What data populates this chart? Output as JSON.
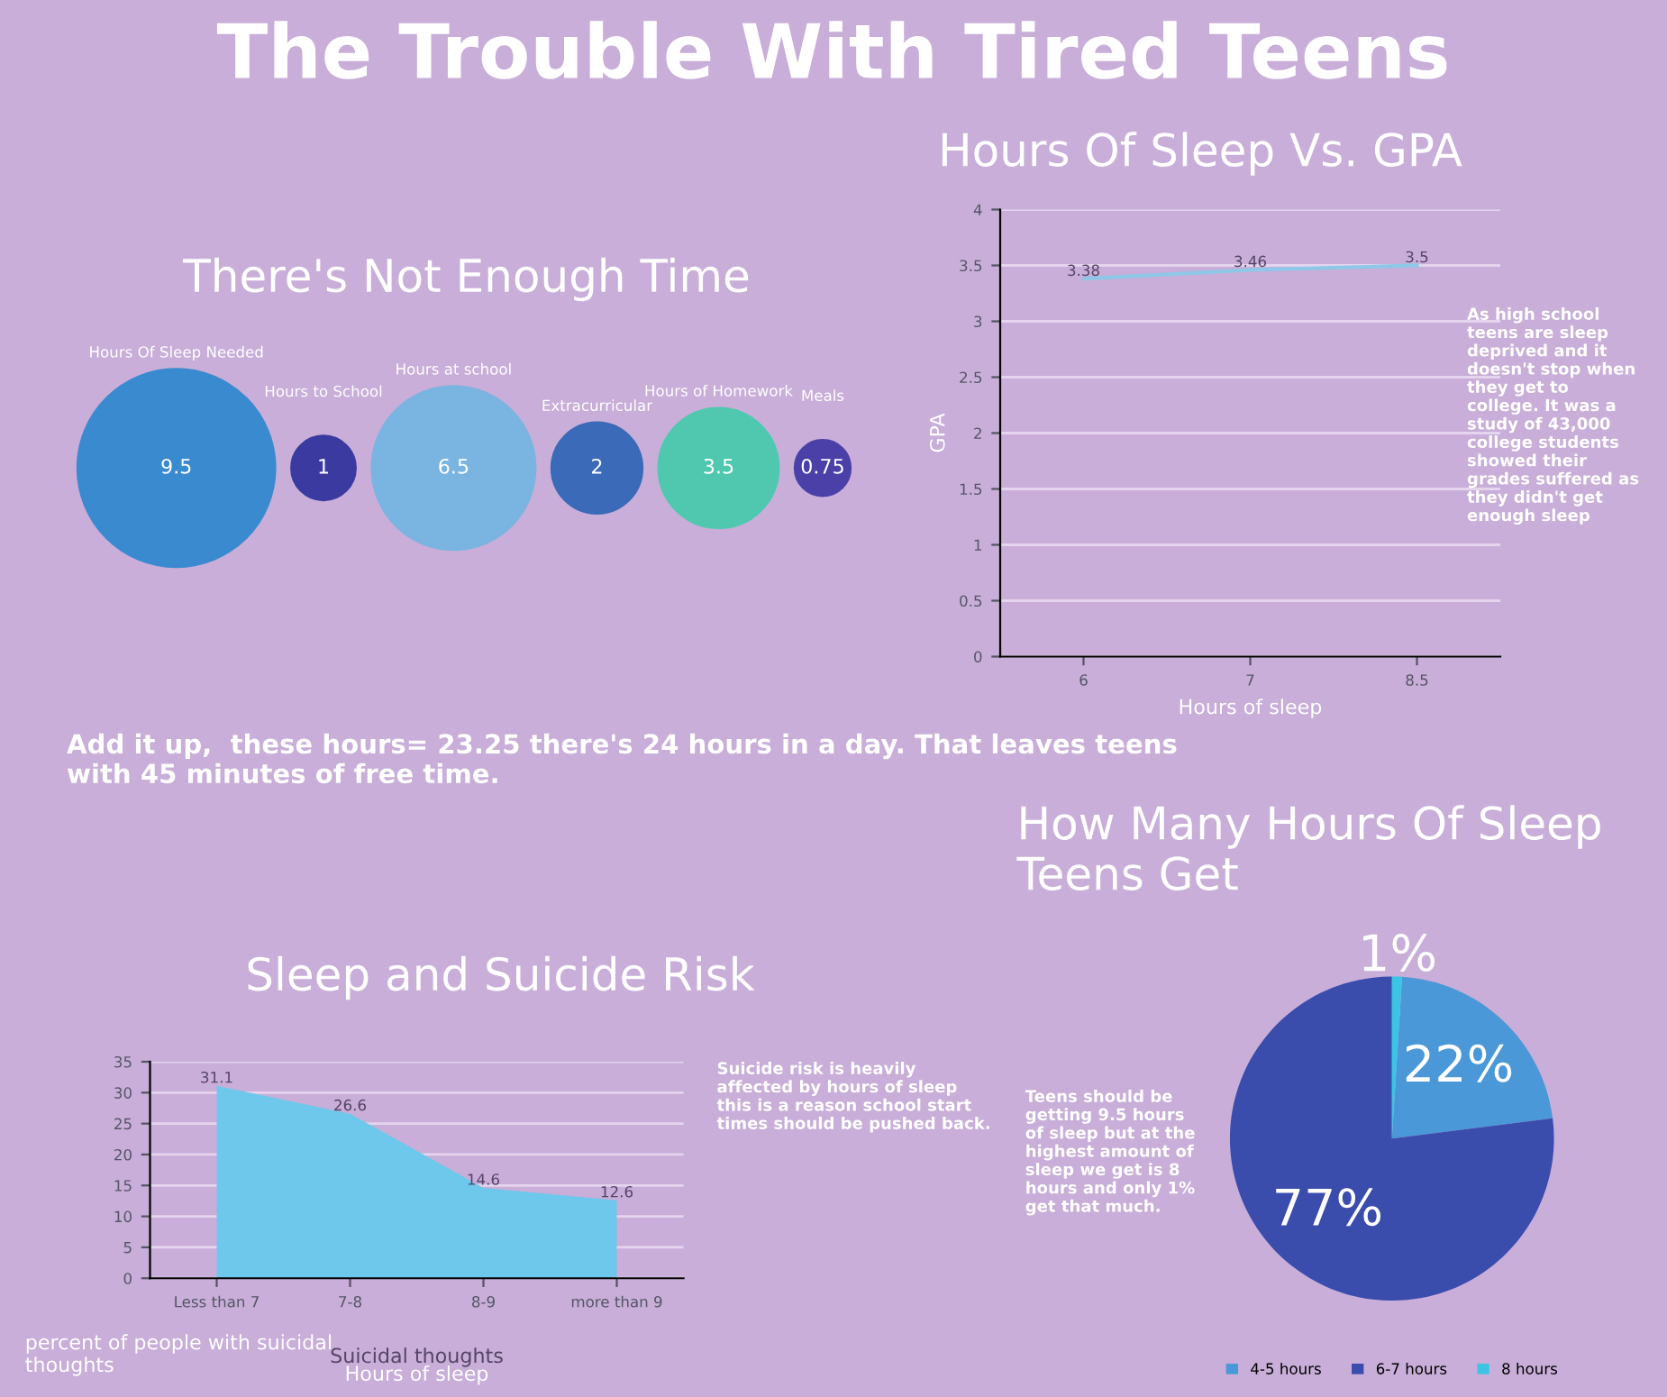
{
  "chart_data": [
    {
      "type": "other",
      "title": "The Trouble With Tired Teens"
    },
    {
      "type": "other",
      "title": "There's Not Enough Time",
      "categories": [
        "Hours Of Sleep Needed",
        "Hours to School",
        "Hours at school",
        "Extracurricular",
        "Hours of Homework",
        "Meals"
      ],
      "values": [
        9.5,
        1,
        6.5,
        2,
        3.5,
        0.75
      ],
      "colors": [
        "#3a8ad0",
        "#3a3aa0",
        "#7ab4e0",
        "#3a6ab8",
        "#50c8b0",
        "#4a40a8"
      ],
      "data_labels": true,
      "annotations": [
        "Add it up,  these hours= 23.25 there's 24 hours in a day. That leaves teens with 45 minutes of free time."
      ]
    },
    {
      "type": "line",
      "title": "Hours Of Sleep Vs. GPA",
      "xlabel": "Hours of sleep",
      "ylabel": "GPA",
      "categories": [
        "6",
        "7",
        "8.5"
      ],
      "series": [
        {
          "color": "#8ec8e8",
          "values": [
            3.38,
            3.46,
            3.5
          ]
        }
      ],
      "ylim": [
        0,
        4
      ],
      "yticks": [
        0,
        0.5,
        1,
        1.5,
        2,
        2.5,
        3,
        3.5,
        4
      ],
      "grid": "y",
      "data_labels": true,
      "marker": "none",
      "annotations": [
        "As high school teens are sleep deprived and it doesn't stop when they get to college. It was a study of 43,000 college students showed their grades suffered as they didn't get enough sleep"
      ]
    },
    {
      "type": "area",
      "title": "Sleep and Suicide Risk",
      "xlabel": "Hours of sleep",
      "ylabel": "percent of people with suicidal thoughts",
      "categories": [
        "Less than 7",
        "7-8",
        "8-9",
        "more than 9"
      ],
      "series": [
        {
          "name": "Suicidal thoughts",
          "color": "#6ec8ec",
          "values": [
            31.1,
            26.6,
            14.6,
            12.6
          ]
        }
      ],
      "ylim": [
        0,
        35
      ],
      "yticks": [
        0,
        5,
        10,
        15,
        20,
        25,
        30,
        35
      ],
      "grid": "y",
      "data_labels": true,
      "annotations": [
        "Suicide risk is heavily affected by hours of sleep this is a reason school start times should be pushed back."
      ]
    },
    {
      "type": "pie",
      "title": "How Many Hours Of Sleep Teens Get",
      "categories": [
        "4-5 hours",
        "6-7 hours",
        "8 hours"
      ],
      "values": [
        22,
        77,
        1
      ],
      "colors": [
        "#4a98d8",
        "#3a4cac",
        "#3cc4e4"
      ],
      "legend": "bottom",
      "data_labels": true,
      "value_labels": [
        "22%",
        "77%",
        "1%"
      ],
      "annotations": [
        "Teens should be getting 9.5 hours of sleep but at the highest amount of sleep we get is 8 hours and only 1% get that much."
      ]
    }
  ]
}
